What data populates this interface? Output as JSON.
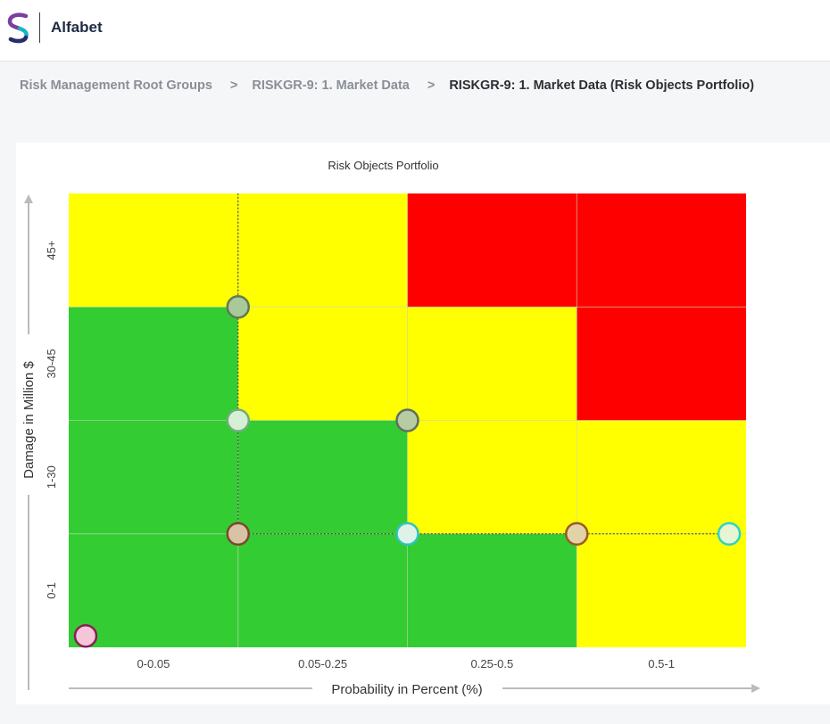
{
  "app": {
    "title": "Alfabet",
    "logo_icon": "alfabet-s-logo-icon"
  },
  "breadcrumb": [
    {
      "label": "Risk Management Root Groups",
      "current": false
    },
    {
      "label": "RISKGR-9: 1. Market Data",
      "current": false
    },
    {
      "label": "RISKGR-9: 1. Market Data (Risk Objects Portfolio)",
      "current": true
    }
  ],
  "breadcrumb_separator": ">",
  "colors": {
    "low": "#33cc33",
    "medium": "#ffff00",
    "high": "#ff0000",
    "accent_purple": "#7b3fa0",
    "accent_teal": "#1bb3c8"
  },
  "chart_data": {
    "type": "scatter",
    "title": "Risk Objects Portfolio",
    "xlabel": "Probability in Percent (%)",
    "ylabel": "Damage in Million $",
    "x_categories": [
      "0-0.05",
      "0.05-0.25",
      "0.25-0.5",
      "0.5-1"
    ],
    "y_categories": [
      "0-1",
      "1-30",
      "30-45",
      "45+"
    ],
    "xlim": [
      0,
      4
    ],
    "ylim": [
      0,
      4
    ],
    "cell_risk": [
      [
        "low",
        "low",
        "low",
        "medium"
      ],
      [
        "low",
        "low",
        "medium",
        "medium"
      ],
      [
        "low",
        "medium",
        "medium",
        "high"
      ],
      [
        "medium",
        "medium",
        "high",
        "high"
      ]
    ],
    "grid": true,
    "points": [
      {
        "x": 0.1,
        "y": 0.1,
        "fill": "#f4c6d8",
        "stroke": "#8b1e5a"
      },
      {
        "x": 1.0,
        "y": 1.0,
        "fill": "#d9c3a6",
        "stroke": "#7a4a2a"
      },
      {
        "x": 1.0,
        "y": 2.0,
        "fill": "#d5f0d5",
        "stroke": "#6fae79"
      },
      {
        "x": 1.0,
        "y": 3.0,
        "fill": "#a9c99a",
        "stroke": "#5f7a55"
      },
      {
        "x": 2.0,
        "y": 2.0,
        "fill": "#b7cca3",
        "stroke": "#5f7060"
      },
      {
        "x": 2.0,
        "y": 1.0,
        "fill": "#dff2e8",
        "stroke": "#2ec4bd"
      },
      {
        "x": 3.0,
        "y": 1.0,
        "fill": "#e2d2a8",
        "stroke": "#9a5a24"
      },
      {
        "x": 3.9,
        "y": 1.0,
        "fill": "#e6f5d2",
        "stroke": "#2fd3c8"
      }
    ],
    "connectors": [
      {
        "from": [
          1.0,
          1.0
        ],
        "to": [
          3.9,
          1.0
        ]
      },
      {
        "from": [
          1.0,
          1.0
        ],
        "to": [
          1.0,
          4.0
        ]
      }
    ]
  }
}
